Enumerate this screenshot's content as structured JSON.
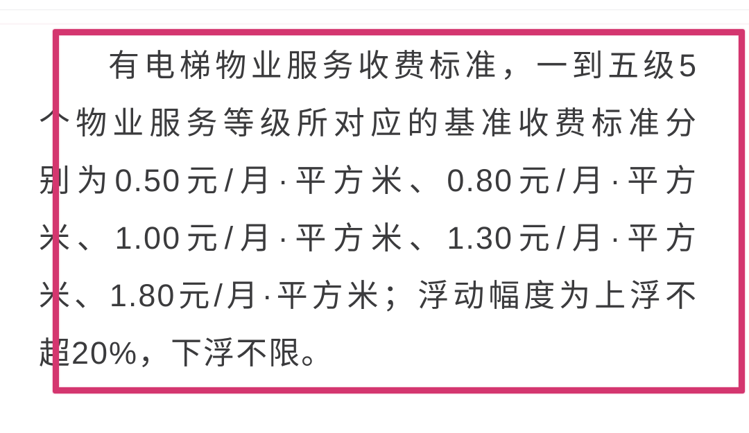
{
  "colors": {
    "accent_pink": "#d4366f",
    "text_color": "#3b3b3d",
    "background": "#ffffff"
  },
  "annotation_box": {
    "shape": "rectangle-outline",
    "border_color": "#d4366f"
  },
  "paragraph": {
    "full_text": "有电梯物业服务收费标准，一到五级5个物业服务等级所对应的基准收费标准分别为0.50元/月·平方米、0.80元/月·平方米、1.00元/月·平方米、1.30元/月·平方米、1.80元/月·平方米；浮动幅度为上浮不超20%，下浮不限。",
    "lines": [
      "有电梯物业服务收费标准，一到五级5",
      "个物业服务等级所对应的基准收费标准分",
      "别为0.50元/月·平方米、0.80元/月·平方",
      "米、1.00元/月·平方米、1.30元/月·平方",
      "米、1.80元/月·平方米；浮动幅度为上浮不",
      "超20%，下浮不限。"
    ]
  }
}
